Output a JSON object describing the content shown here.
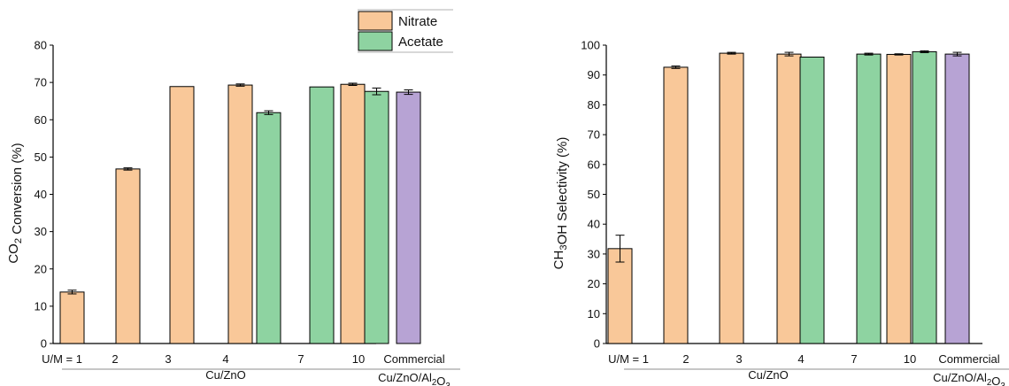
{
  "colors": {
    "nitrate": "#f9c899",
    "acetate": "#8ed3a1",
    "commercial": "#b7a3d4",
    "stroke": "#000000"
  },
  "legend": {
    "nitrate": "Nitrate",
    "acetate": "Acetate"
  },
  "group_labels": {
    "cu_zno": "Cu/ZnO",
    "commercial_cat": "Cu/ZnO/Al2O3"
  },
  "chart_data": [
    {
      "type": "bar",
      "ylabel": "CO2 Conversion (%)",
      "ylim": [
        0,
        80
      ],
      "yticks": [
        0,
        10,
        20,
        30,
        40,
        50,
        60,
        70,
        80
      ],
      "categories": [
        "U/M = 1",
        "2",
        "3",
        "4",
        "7",
        "10",
        "Commercial"
      ],
      "series": [
        {
          "name": "Nitrate",
          "values": [
            13.8,
            46.8,
            68.9,
            69.3,
            null,
            69.5,
            null
          ],
          "errors": [
            0.5,
            0.3,
            0,
            0.3,
            null,
            0.3,
            null
          ]
        },
        {
          "name": "Acetate",
          "values": [
            null,
            null,
            null,
            61.9,
            68.8,
            67.6,
            null
          ],
          "errors": [
            null,
            null,
            null,
            0.5,
            0,
            0.9,
            null
          ]
        },
        {
          "name": "Commercial",
          "values": [
            null,
            null,
            null,
            null,
            null,
            null,
            67.4
          ],
          "errors": [
            null,
            null,
            null,
            null,
            null,
            null,
            0.6
          ]
        }
      ]
    },
    {
      "type": "bar",
      "ylabel": "CH3OH Selectivity (%)",
      "ylim": [
        0,
        100
      ],
      "yticks": [
        0,
        10,
        20,
        30,
        40,
        50,
        60,
        70,
        80,
        90,
        100
      ],
      "categories": [
        "U/M = 1",
        "2",
        "3",
        "4",
        "7",
        "10",
        "Commercial"
      ],
      "series": [
        {
          "name": "Nitrate",
          "values": [
            31.8,
            92.6,
            97.3,
            97.0,
            null,
            96.9,
            null
          ],
          "errors": [
            4.5,
            0.4,
            0.3,
            0.6,
            null,
            0.2,
            null
          ]
        },
        {
          "name": "Acetate",
          "values": [
            null,
            null,
            null,
            96.0,
            97.0,
            97.8,
            null
          ],
          "errors": [
            null,
            null,
            null,
            0,
            0.3,
            0.3,
            null
          ]
        },
        {
          "name": "Commercial",
          "values": [
            null,
            null,
            null,
            null,
            null,
            null,
            97.0
          ],
          "errors": [
            null,
            null,
            null,
            null,
            null,
            null,
            0.6
          ]
        }
      ]
    }
  ]
}
